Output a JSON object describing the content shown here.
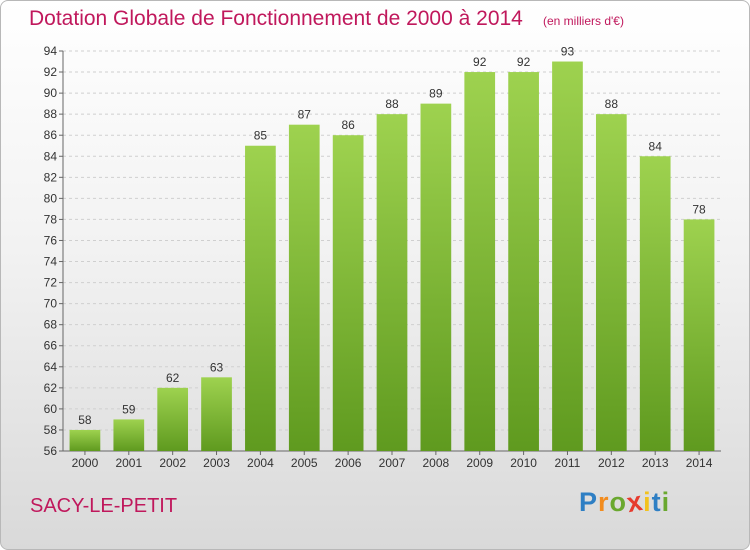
{
  "title": "Dotation Globale de Fonctionnement de 2000 à 2014",
  "subtitle": "(en milliers d'€)",
  "commune": "SACY-LE-PETIT",
  "logo": {
    "letters": [
      "P",
      "r",
      "o",
      "x",
      "i",
      "t",
      "i"
    ],
    "colors": [
      "#2e7fc4",
      "#f28c1e",
      "#6aa82f",
      "#e63b2e",
      "#f2c21e",
      "#2e7fc4",
      "#6aa82f"
    ]
  },
  "colors": {
    "bar": "#84c43a",
    "grid": "#cfcfcf",
    "accent": "#c0185c"
  },
  "chart_data": {
    "type": "bar",
    "title": "Dotation Globale de Fonctionnement de 2000 à 2014",
    "xlabel": "",
    "ylabel": "",
    "categories": [
      "2000",
      "2001",
      "2002",
      "2003",
      "2004",
      "2005",
      "2006",
      "2007",
      "2008",
      "2009",
      "2010",
      "2011",
      "2012",
      "2013",
      "2014"
    ],
    "values": [
      58,
      59,
      62,
      63,
      85,
      87,
      86,
      88,
      89,
      92,
      92,
      93,
      88,
      84,
      78
    ],
    "data_labels": [
      "58",
      "59",
      "62",
      "63",
      "85",
      "87",
      "86",
      "88",
      "89",
      "92",
      "92",
      "93",
      "88",
      "84",
      "78"
    ],
    "ylim": [
      56,
      94
    ],
    "yticks": [
      56,
      58,
      60,
      62,
      64,
      66,
      68,
      70,
      72,
      74,
      76,
      78,
      80,
      82,
      84,
      86,
      88,
      90,
      92,
      94
    ],
    "grid": true
  }
}
